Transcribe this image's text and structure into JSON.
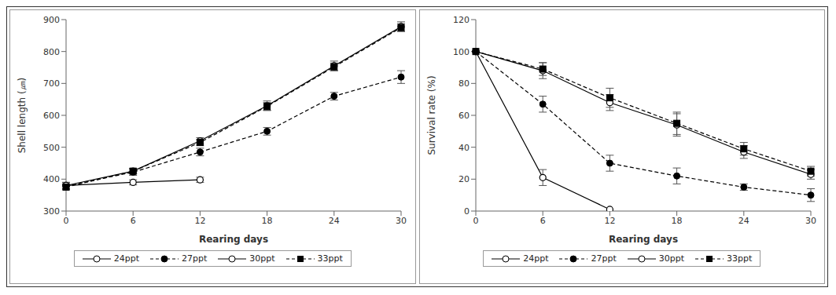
{
  "chart_data": [
    {
      "type": "line",
      "y_label": "Shell length (㎛)",
      "x_label": "Rearing days",
      "categories": [
        0,
        6,
        12,
        18,
        24,
        30
      ],
      "ylim": [
        300,
        900
      ],
      "yticks": [
        300,
        400,
        500,
        600,
        700,
        800,
        900
      ],
      "grid": false,
      "legend": "bottom",
      "series": [
        {
          "name": "24ppt",
          "color": "#000000",
          "marker": "open_circle",
          "line_style": "solid",
          "values": [
            380,
            390,
            398,
            null,
            null,
            null
          ],
          "errors": [
            10,
            8,
            8,
            null,
            null,
            null
          ]
        },
        {
          "name": "27ppt",
          "color": "#000000",
          "marker": "circle",
          "line_style": "dashed",
          "values": [
            378,
            422,
            485,
            550,
            660,
            720
          ],
          "errors": [
            8,
            10,
            12,
            12,
            12,
            20
          ]
        },
        {
          "name": "30ppt",
          "color": "#000000",
          "marker": "open_circle",
          "line_style": "solid",
          "values": [
            380,
            425,
            520,
            630,
            755,
            878
          ],
          "errors": [
            10,
            8,
            10,
            15,
            15,
            15
          ]
        },
        {
          "name": "33ppt",
          "color": "#000000",
          "marker": "square",
          "line_style": "dashed",
          "values": [
            375,
            425,
            515,
            628,
            752,
            875
          ],
          "errors": [
            8,
            8,
            10,
            12,
            12,
            12
          ]
        }
      ]
    },
    {
      "type": "line",
      "y_label": "Survival rate (%)",
      "x_label": "Rearing days",
      "categories": [
        0,
        6,
        12,
        18,
        24,
        30
      ],
      "ylim": [
        0,
        120
      ],
      "yticks": [
        0,
        20,
        40,
        60,
        80,
        100,
        120
      ],
      "grid": false,
      "legend": "bottom",
      "series": [
        {
          "name": "24ppt",
          "color": "#000000",
          "marker": "open_circle",
          "line_style": "solid",
          "values": [
            100,
            21,
            1,
            null,
            null,
            null
          ],
          "errors": [
            0,
            5,
            0,
            null,
            null,
            null
          ]
        },
        {
          "name": "27ppt",
          "color": "#000000",
          "marker": "circle",
          "line_style": "dashed",
          "values": [
            100,
            67,
            30,
            22,
            15,
            10
          ],
          "errors": [
            0,
            5,
            5,
            5,
            2,
            4
          ]
        },
        {
          "name": "30ppt",
          "color": "#000000",
          "marker": "open_circle",
          "line_style": "solid",
          "values": [
            100,
            88,
            68,
            54,
            37,
            23
          ],
          "errors": [
            0,
            5,
            5,
            7,
            4,
            3
          ]
        },
        {
          "name": "33ppt",
          "color": "#000000",
          "marker": "square",
          "line_style": "dashed",
          "values": [
            100,
            89,
            71,
            55,
            39,
            25
          ],
          "errors": [
            0,
            4,
            6,
            7,
            4,
            3
          ]
        }
      ]
    }
  ]
}
